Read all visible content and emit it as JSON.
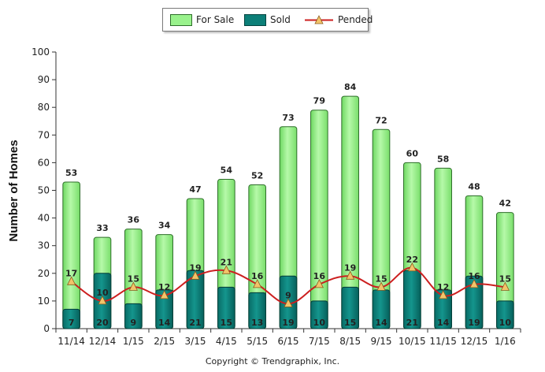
{
  "chart_data": {
    "type": "bar",
    "categories": [
      "11/14",
      "12/14",
      "1/15",
      "2/15",
      "3/15",
      "4/15",
      "5/15",
      "6/15",
      "7/15",
      "8/15",
      "9/15",
      "10/15",
      "11/15",
      "12/15",
      "1/16"
    ],
    "series": [
      {
        "name": "For Sale",
        "type": "bar",
        "color": "#99f28c",
        "values": [
          53,
          33,
          36,
          34,
          47,
          54,
          52,
          73,
          79,
          84,
          72,
          60,
          58,
          48,
          42
        ]
      },
      {
        "name": "Sold",
        "type": "bar",
        "color": "#0c7f78",
        "values": [
          7,
          20,
          9,
          14,
          21,
          15,
          13,
          19,
          10,
          15,
          14,
          21,
          14,
          19,
          10
        ]
      },
      {
        "name": "Pended",
        "type": "line",
        "color": "#cc1f1f",
        "marker_color": "#f2c46a",
        "values": [
          17,
          10,
          15,
          12,
          19,
          21,
          16,
          9,
          16,
          19,
          15,
          22,
          12,
          16,
          15
        ]
      }
    ],
    "ylabel": "Number of Homes",
    "ylim": [
      0,
      100
    ],
    "yticks": [
      0,
      10,
      20,
      30,
      40,
      50,
      60,
      70,
      80,
      90,
      100
    ],
    "legend_position": "top-center",
    "grid": false
  },
  "footer": {
    "copyright": "Copyright © Trendgraphix, Inc."
  }
}
